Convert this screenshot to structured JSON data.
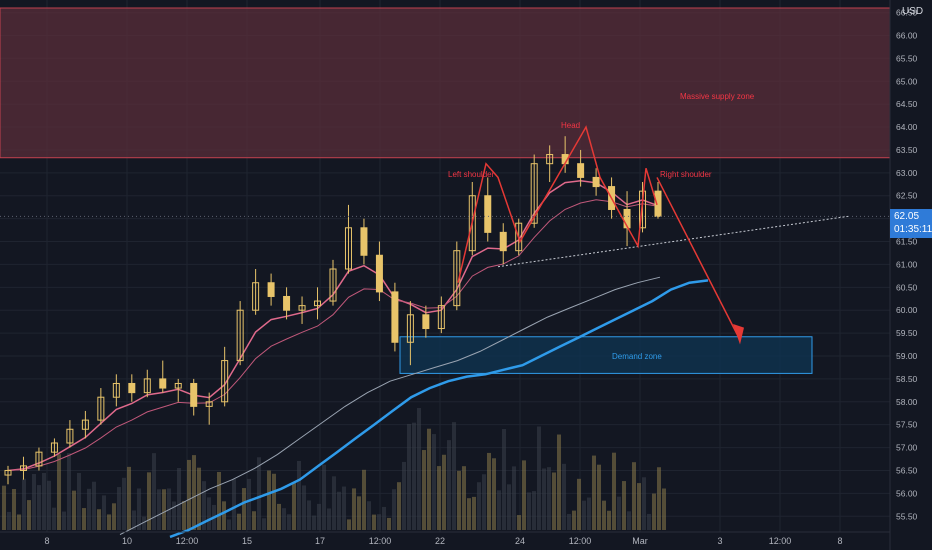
{
  "currency": "USD",
  "last_price": "62.05",
  "countdown": "01:35:11",
  "colors": {
    "background": "#131722",
    "grid": "#1f2430",
    "candle": "#e8c46a",
    "supply_zone": "#5a2e3a",
    "demand_zone": "#0f3350",
    "ema_fast": "#e06a8c",
    "ma_blue": "#2f9bea",
    "ma_white": "#9aa4b2",
    "arrow": "#e53935",
    "annotation": "#f23645",
    "demand_label": "#2f9bea",
    "volume": "#8a7a4a",
    "price_tag": "#2f7bd8"
  },
  "chart_data": {
    "type": "candlestick",
    "y_axis": {
      "ticks": [
        "55.50",
        "56.00",
        "56.50",
        "57.00",
        "57.50",
        "58.00",
        "58.50",
        "59.00",
        "59.50",
        "60.00",
        "60.50",
        "61.00",
        "61.50",
        "62.00",
        "62.50",
        "63.00",
        "63.50",
        "64.00",
        "64.50",
        "65.00",
        "65.50",
        "66.00",
        "66.50"
      ],
      "range": [
        55.2,
        66.6
      ]
    },
    "x_axis": {
      "ticks": [
        "8",
        "10",
        "12:00",
        "15",
        "17",
        "12:00",
        "22",
        "24",
        "12:00",
        "Mar",
        "3",
        "12:00",
        "8"
      ]
    },
    "annotations": {
      "supply_zone": {
        "label": "Massive supply zone",
        "low": 63.33,
        "high": 66.6
      },
      "demand_zone": {
        "label": "Demand zone",
        "low": 58.62,
        "high": 59.42
      },
      "left_shoulder": "Left shoulder",
      "head": "Head",
      "right_shoulder": "Right shoulder"
    },
    "series": {
      "ma_blue": [
        55.05,
        55.2,
        55.4,
        55.6,
        55.8,
        55.95,
        56.1,
        56.3,
        56.6,
        56.9,
        57.2,
        57.5,
        57.8,
        58.1,
        58.3,
        58.45,
        58.55,
        58.6,
        58.7,
        58.8,
        59.0,
        59.2,
        59.4,
        59.6,
        59.8,
        60.0,
        60.2,
        60.45,
        60.6,
        60.65
      ],
      "ma_white": [
        55.1,
        55.35,
        55.6,
        55.85,
        56.1,
        56.3,
        56.55,
        56.85,
        57.2,
        57.55,
        57.9,
        58.2,
        58.45,
        58.6,
        58.75,
        58.9,
        59.1,
        59.35,
        59.6,
        59.85,
        60.05,
        60.25,
        60.45,
        60.6,
        60.72
      ]
    },
    "candles": [
      [
        56.4,
        56.6,
        56.2,
        56.5
      ],
      [
        56.5,
        56.8,
        56.3,
        56.6
      ],
      [
        56.6,
        57.0,
        56.5,
        56.9
      ],
      [
        56.9,
        57.2,
        56.8,
        57.1
      ],
      [
        57.1,
        57.6,
        57.0,
        57.4
      ],
      [
        57.4,
        57.8,
        57.2,
        57.6
      ],
      [
        57.6,
        58.3,
        57.5,
        58.1
      ],
      [
        58.1,
        58.6,
        57.9,
        58.4
      ],
      [
        58.4,
        58.6,
        58.0,
        58.2
      ],
      [
        58.2,
        58.7,
        58.1,
        58.5
      ],
      [
        58.5,
        58.9,
        58.2,
        58.3
      ],
      [
        58.3,
        58.5,
        58.0,
        58.4
      ],
      [
        58.4,
        58.5,
        57.7,
        57.9
      ],
      [
        57.9,
        58.2,
        57.5,
        58.0
      ],
      [
        58.0,
        59.2,
        57.9,
        58.9
      ],
      [
        58.9,
        60.2,
        58.8,
        60.0
      ],
      [
        60.0,
        60.9,
        59.9,
        60.6
      ],
      [
        60.6,
        60.8,
        60.1,
        60.3
      ],
      [
        60.3,
        60.5,
        59.8,
        60.0
      ],
      [
        60.0,
        60.3,
        59.7,
        60.1
      ],
      [
        60.1,
        60.5,
        59.8,
        60.2
      ],
      [
        60.2,
        61.1,
        60.1,
        60.9
      ],
      [
        60.9,
        62.3,
        60.8,
        61.8
      ],
      [
        61.8,
        62.0,
        61.0,
        61.2
      ],
      [
        61.2,
        61.5,
        60.2,
        60.4
      ],
      [
        60.4,
        60.6,
        59.1,
        59.3
      ],
      [
        59.3,
        60.2,
        58.8,
        59.9
      ],
      [
        59.9,
        60.1,
        59.4,
        59.6
      ],
      [
        59.6,
        60.3,
        59.5,
        60.1
      ],
      [
        60.1,
        61.5,
        60.0,
        61.3
      ],
      [
        61.3,
        62.8,
        61.2,
        62.5
      ],
      [
        62.5,
        62.9,
        61.5,
        61.7
      ],
      [
        61.7,
        61.9,
        61.0,
        61.3
      ],
      [
        61.3,
        62.0,
        61.2,
        61.9
      ],
      [
        61.9,
        63.4,
        61.8,
        63.2
      ],
      [
        63.2,
        63.6,
        62.8,
        63.4
      ],
      [
        63.4,
        63.8,
        63.0,
        63.2
      ],
      [
        63.2,
        63.5,
        62.7,
        62.9
      ],
      [
        62.9,
        63.1,
        62.5,
        62.7
      ],
      [
        62.7,
        62.9,
        62.0,
        62.2
      ],
      [
        62.2,
        62.6,
        61.4,
        61.8
      ],
      [
        61.8,
        62.8,
        61.7,
        62.6
      ],
      [
        62.6,
        62.8,
        62.0,
        62.05
      ]
    ]
  }
}
